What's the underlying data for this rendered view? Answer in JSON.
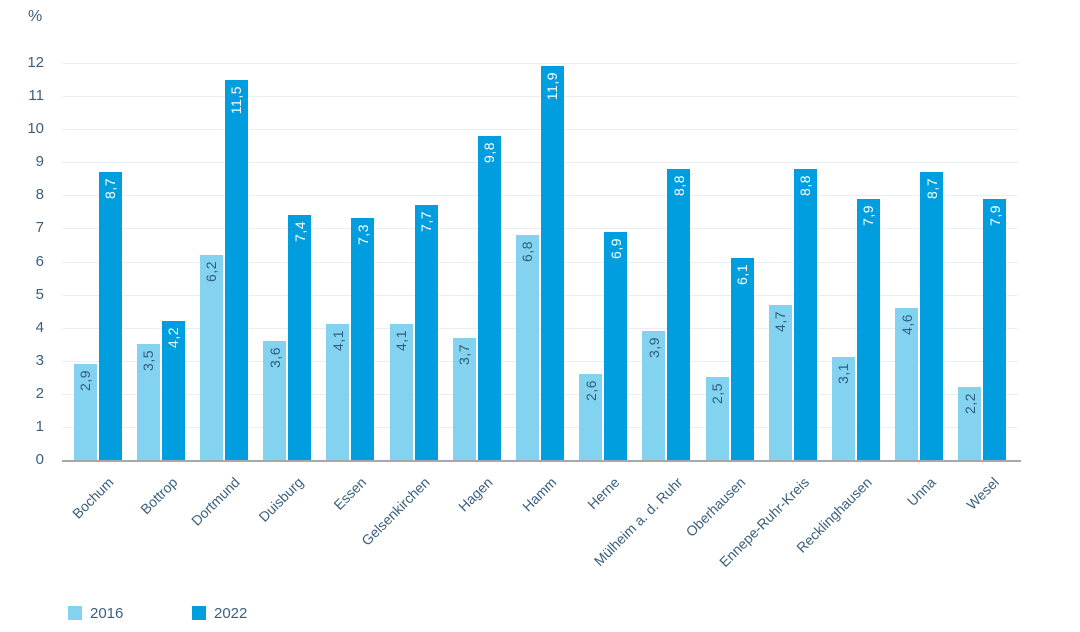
{
  "chart_data": {
    "type": "bar",
    "title": "",
    "unit_label": "%",
    "decimal_separator": ",",
    "categories": [
      "Bochum",
      "Bottrop",
      "Dortmund",
      "Duisburg",
      "Essen",
      "Gelsenkirchen",
      "Hagen",
      "Hamm",
      "Herne",
      "Mülheim a. d. Ruhr",
      "Oberhausen",
      "Ennepe-Ruhr-Kreis",
      "Recklinghausen",
      "Unna",
      "Wesel"
    ],
    "series": [
      {
        "name": "2016",
        "color": "#82d2f0",
        "value_label_color": "#2e5e7d",
        "values": [
          2.9,
          3.5,
          6.2,
          3.6,
          4.1,
          4.1,
          3.7,
          6.8,
          2.6,
          3.9,
          2.5,
          4.7,
          3.1,
          4.6,
          2.2
        ]
      },
      {
        "name": "2022",
        "color": "#009edf",
        "value_label_color": "#ffffff",
        "values": [
          8.7,
          4.2,
          11.5,
          7.4,
          7.3,
          7.7,
          9.8,
          11.9,
          6.9,
          8.8,
          6.1,
          8.8,
          7.9,
          8.7,
          7.9
        ]
      }
    ],
    "ylim": [
      0,
      12
    ],
    "ytick_step": 1,
    "grid": true,
    "axis_text_color": "#3a607e",
    "gridline_color": "#e9eef3",
    "baseline_color": "#a6a8ab",
    "legend_position": "bottom-left"
  }
}
